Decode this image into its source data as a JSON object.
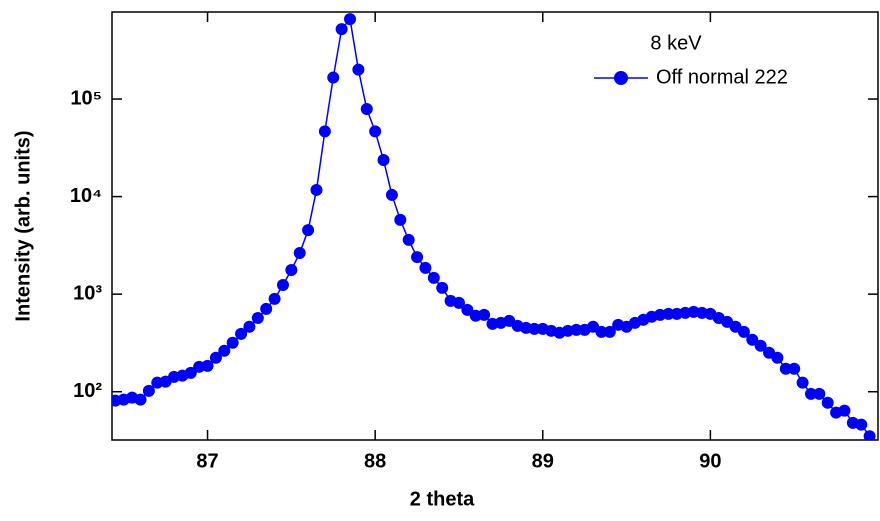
{
  "chart_data": {
    "type": "line",
    "x_label": "2 theta",
    "y_label": "Intensity (arb. units)",
    "legend_title": "8 keV",
    "legend_position": "upper right",
    "y_log_scale": true,
    "markers": true,
    "xlim": [
      86.43,
      91.0
    ],
    "ylim": [
      32,
      780000
    ],
    "xticks": [
      87,
      88,
      89,
      90
    ],
    "yticks": [
      {
        "value": 100,
        "label": "10²"
      },
      {
        "value": 1000,
        "label": "10³"
      },
      {
        "value": 10000,
        "label": "10⁴"
      },
      {
        "value": 100000,
        "label": "10⁵"
      }
    ],
    "x": [
      86.45,
      86.5,
      86.55,
      86.6,
      86.65,
      86.7,
      86.75,
      86.8,
      86.85,
      86.9,
      86.95,
      87.0,
      87.05,
      87.1,
      87.15,
      87.2,
      87.25,
      87.3,
      87.35,
      87.4,
      87.45,
      87.5,
      87.55,
      87.6,
      87.65,
      87.7,
      87.75,
      87.8,
      87.85,
      87.9,
      87.95,
      88.0,
      88.05,
      88.1,
      88.15,
      88.2,
      88.25,
      88.3,
      88.35,
      88.4,
      88.45,
      88.5,
      88.55,
      88.6,
      88.65,
      88.7,
      88.75,
      88.8,
      88.85,
      88.9,
      88.95,
      89.0,
      89.05,
      89.1,
      89.15,
      89.2,
      89.25,
      89.3,
      89.35,
      89.4,
      89.45,
      89.5,
      89.55,
      89.6,
      89.65,
      89.7,
      89.75,
      89.8,
      89.85,
      89.9,
      89.95,
      90.0,
      90.05,
      90.1,
      90.15,
      90.2,
      90.25,
      90.3,
      90.35,
      90.4,
      90.45,
      90.5,
      90.55,
      90.6,
      90.65,
      90.7,
      90.75,
      90.8,
      90.85,
      90.9,
      90.95
    ],
    "series": [
      {
        "name": "Off normal 222",
        "color": "#0000ff",
        "values": [
          81,
          83,
          87,
          83,
          102,
          124,
          127,
          142,
          146,
          156,
          180,
          184,
          223,
          263,
          318,
          392,
          463,
          570,
          707,
          894,
          1240,
          1770,
          2640,
          4530,
          11700,
          46600,
          166000,
          520000,
          660000,
          200000,
          79000,
          46600,
          23700,
          10400,
          5770,
          3600,
          2400,
          1860,
          1470,
          1160,
          853,
          814,
          690,
          600,
          613,
          496,
          508,
          532,
          473,
          451,
          441,
          441,
          421,
          402,
          421,
          431,
          431,
          463,
          411,
          411,
          485,
          463,
          508,
          546,
          586,
          613,
          628,
          628,
          643,
          658,
          643,
          628,
          570,
          520,
          463,
          411,
          341,
          296,
          251,
          223,
          172,
          172,
          124,
          95,
          95,
          77,
          61,
          64,
          48,
          46,
          35
        ]
      }
    ]
  }
}
